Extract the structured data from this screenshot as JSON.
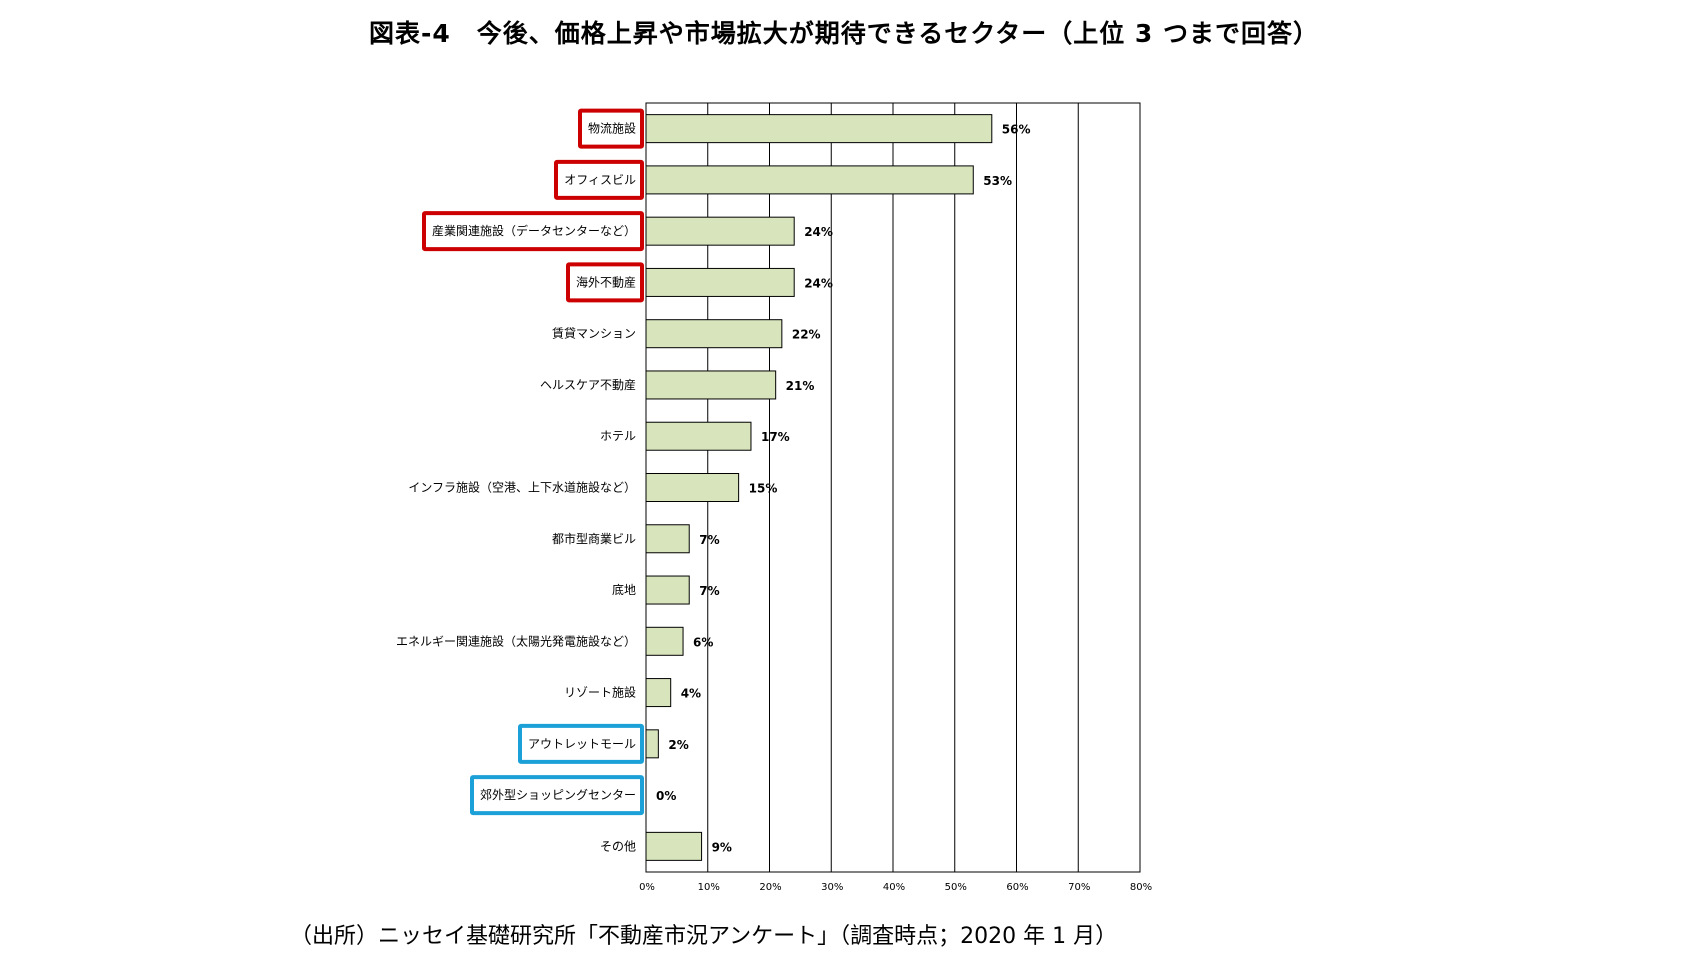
{
  "title": "図表-4　今後、価格上昇や市場拡大が期待できるセクター（上位 3 つまで回答）",
  "source": "（出所）ニッセイ基礎研究所「不動産市況アンケート」（調査時点；2020 年 1 月）",
  "colors": {
    "bar_fill": "#d8e4bc",
    "bar_stroke": "#000000",
    "highlight_red": "#cc0000",
    "highlight_blue": "#1ba1d8"
  },
  "chart_data": {
    "type": "bar",
    "orientation": "horizontal",
    "categories": [
      "物流施設",
      "オフィスビル",
      "産業関連施設（データセンターなど）",
      "海外不動産",
      "賃貸マンション",
      "ヘルスケア不動産",
      "ホテル",
      "インフラ施設（空港、上下水道施設など）",
      "都市型商業ビル",
      "底地",
      "エネルギー関連施設（太陽光発電施設など）",
      "リゾート施設",
      "アウトレットモール",
      "郊外型ショッピングセンター",
      "その他"
    ],
    "values": [
      56,
      53,
      24,
      24,
      22,
      21,
      17,
      15,
      7,
      7,
      6,
      4,
      2,
      0,
      9
    ],
    "value_labels": [
      "56%",
      "53%",
      "24%",
      "24%",
      "22%",
      "21%",
      "17%",
      "15%",
      "7%",
      "7%",
      "6%",
      "4%",
      "2%",
      "0%",
      "9%"
    ],
    "xlim": [
      0,
      80
    ],
    "x_ticks": [
      "0%",
      "10%",
      "20%",
      "30%",
      "40%",
      "50%",
      "60%",
      "70%",
      "80%"
    ],
    "grid": "vertical",
    "highlight_red": [
      "物流施設",
      "オフィスビル",
      "産業関連施設（データセンターなど）",
      "海外不動産"
    ],
    "highlight_blue": [
      "アウトレットモール",
      "郊外型ショッピングセンター"
    ],
    "xlabel": "",
    "ylabel": ""
  }
}
